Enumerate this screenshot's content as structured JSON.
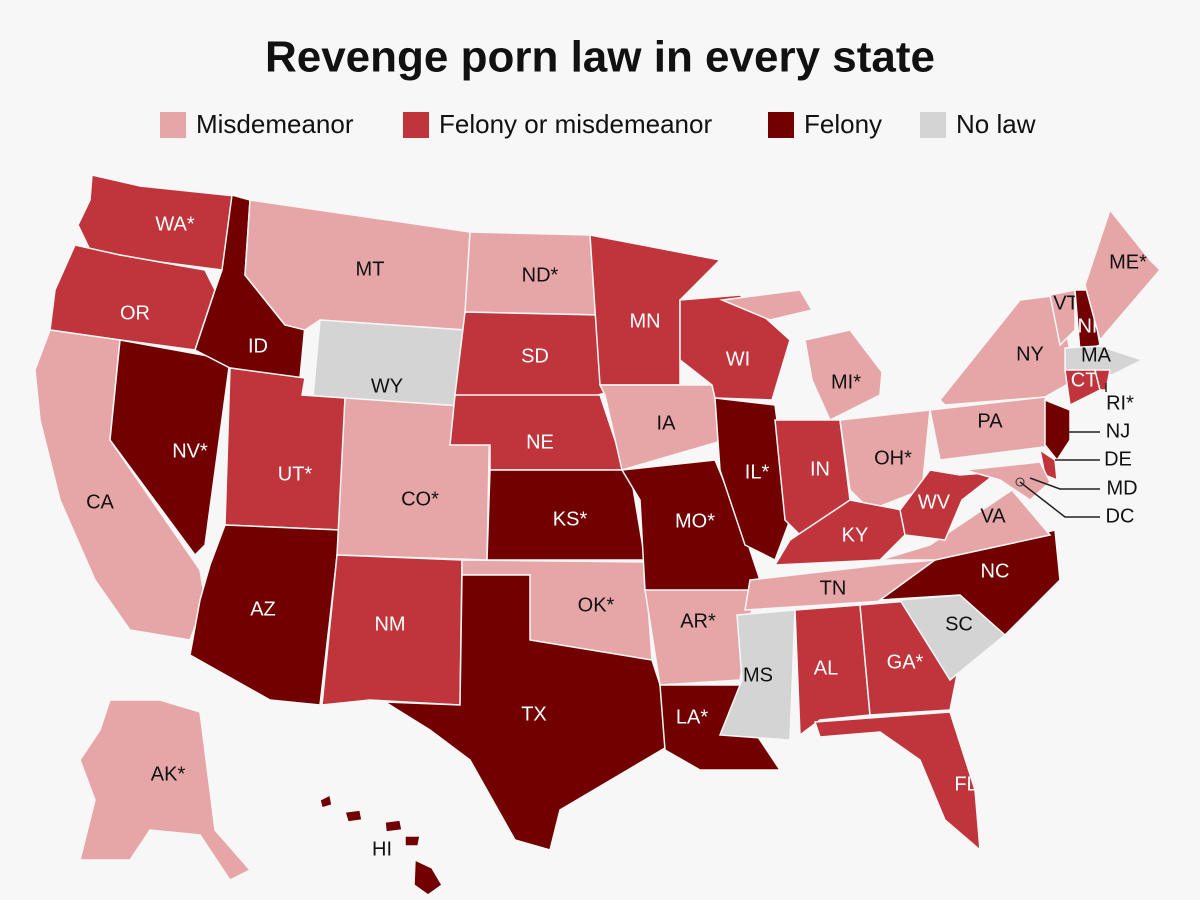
{
  "title": "Revenge porn law in every state",
  "legend": [
    {
      "label": "Misdemeanor",
      "color": "#e6a6a7"
    },
    {
      "label": "Felony or misdemeanor",
      "color": "#c0353b"
    },
    {
      "label": "Felony",
      "color": "#720000"
    },
    {
      "label": "No law",
      "color": "#d4d4d4"
    }
  ],
  "states": [
    {
      "label": "WA*",
      "law": "Felony or misdemeanor"
    },
    {
      "label": "OR",
      "law": "Felony or misdemeanor"
    },
    {
      "label": "CA",
      "law": "Misdemeanor"
    },
    {
      "label": "NV*",
      "law": "Felony"
    },
    {
      "label": "ID",
      "law": "Felony"
    },
    {
      "label": "MT",
      "law": "Misdemeanor"
    },
    {
      "label": "WY",
      "law": "No law"
    },
    {
      "label": "UT*",
      "law": "Felony or misdemeanor"
    },
    {
      "label": "AZ",
      "law": "Felony"
    },
    {
      "label": "CO*",
      "law": "Misdemeanor"
    },
    {
      "label": "NM",
      "law": "Felony or misdemeanor"
    },
    {
      "label": "ND*",
      "law": "Misdemeanor"
    },
    {
      "label": "SD",
      "law": "Felony or misdemeanor"
    },
    {
      "label": "NE",
      "law": "Felony or misdemeanor"
    },
    {
      "label": "KS*",
      "law": "Felony"
    },
    {
      "label": "OK*",
      "law": "Misdemeanor"
    },
    {
      "label": "TX",
      "law": "Felony"
    },
    {
      "label": "MN",
      "law": "Felony or misdemeanor"
    },
    {
      "label": "IA",
      "law": "Misdemeanor"
    },
    {
      "label": "MO*",
      "law": "Felony"
    },
    {
      "label": "AR*",
      "law": "Misdemeanor"
    },
    {
      "label": "LA*",
      "law": "Felony"
    },
    {
      "label": "WI",
      "law": "Felony or misdemeanor"
    },
    {
      "label": "IL*",
      "law": "Felony"
    },
    {
      "label": "MI*",
      "law": "Misdemeanor"
    },
    {
      "label": "IN",
      "law": "Felony or misdemeanor"
    },
    {
      "label": "OH*",
      "law": "Misdemeanor"
    },
    {
      "label": "KY",
      "law": "Felony or misdemeanor"
    },
    {
      "label": "TN",
      "law": "Misdemeanor"
    },
    {
      "label": "MS",
      "law": "No law"
    },
    {
      "label": "AL",
      "law": "Felony or misdemeanor"
    },
    {
      "label": "GA*",
      "law": "Felony or misdemeanor"
    },
    {
      "label": "FL",
      "law": "Felony or misdemeanor"
    },
    {
      "label": "SC",
      "law": "No law"
    },
    {
      "label": "NC",
      "law": "Felony"
    },
    {
      "label": "VA",
      "law": "Misdemeanor"
    },
    {
      "label": "WV",
      "law": "Felony or misdemeanor"
    },
    {
      "label": "PA",
      "law": "Misdemeanor"
    },
    {
      "label": "NY",
      "law": "Misdemeanor"
    },
    {
      "label": "VT",
      "law": "Misdemeanor"
    },
    {
      "label": "NH",
      "law": "Felony"
    },
    {
      "label": "ME*",
      "law": "Misdemeanor"
    },
    {
      "label": "MA",
      "law": "No law"
    },
    {
      "label": "CT*",
      "law": "Felony or misdemeanor"
    },
    {
      "label": "RI*",
      "law": "Felony or misdemeanor"
    },
    {
      "label": "NJ",
      "law": "Felony"
    },
    {
      "label": "DE",
      "law": "Felony or misdemeanor"
    },
    {
      "label": "MD",
      "law": "Misdemeanor"
    },
    {
      "label": "DC",
      "law": "Misdemeanor"
    },
    {
      "label": "AK*",
      "law": "Misdemeanor"
    },
    {
      "label": "HI",
      "law": "Felony"
    }
  ]
}
